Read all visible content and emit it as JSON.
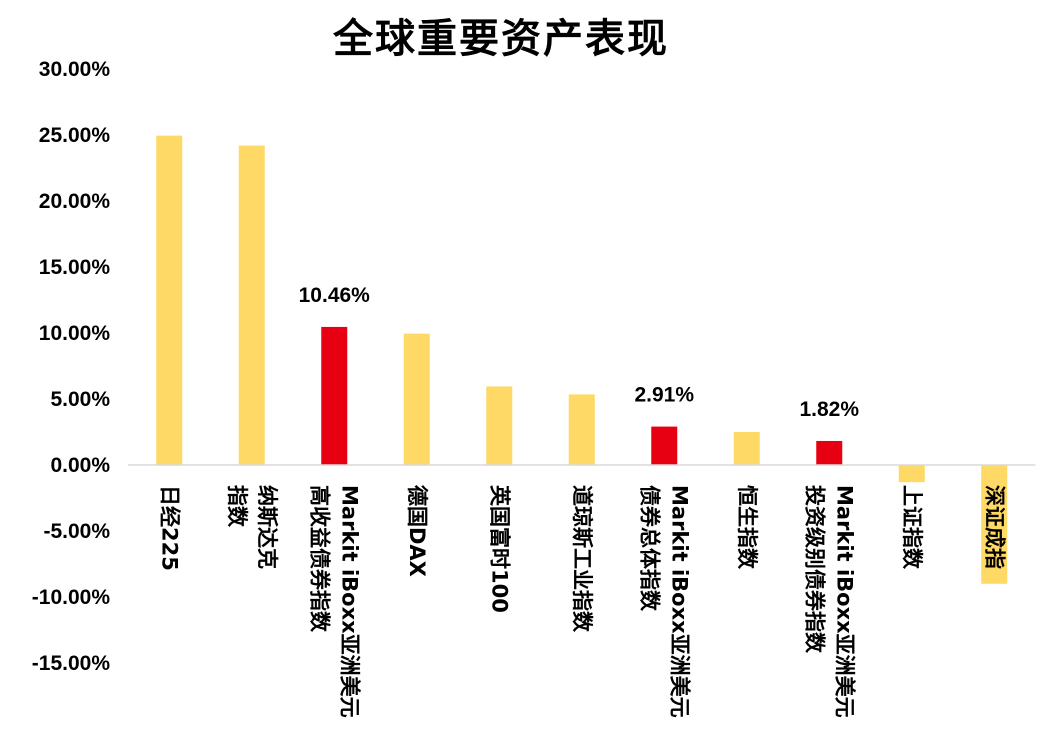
{
  "chart_data": {
    "type": "bar",
    "title": "全球重要资产表现",
    "xlabel": "",
    "ylabel": "",
    "ylim": [
      -15,
      30
    ],
    "yticks": [
      "30.00%",
      "25.00%",
      "20.00%",
      "15.00%",
      "10.00%",
      "5.00%",
      "0.00%",
      "-5.00%",
      "-10.00%",
      "-15.00%"
    ],
    "categories": [
      [
        "日经225"
      ],
      [
        "纳斯达克",
        "指数"
      ],
      [
        "Markit iBoxx亚洲美元",
        "高收益债券指数"
      ],
      [
        "德国DAX"
      ],
      [
        "英国富时100"
      ],
      [
        "道琼斯工业指数"
      ],
      [
        "Markit iBoxx亚洲美元",
        "债券总体指数"
      ],
      [
        "恒生指数"
      ],
      [
        "Markit iBoxx亚洲美元",
        "投资级别债券指数"
      ],
      [
        "上证指数"
      ],
      [
        "深证成指"
      ]
    ],
    "values": [
      24.95,
      24.2,
      10.46,
      9.95,
      5.95,
      5.35,
      2.91,
      2.5,
      1.82,
      -1.3,
      -9.0
    ],
    "highlight": [
      false,
      false,
      true,
      false,
      false,
      false,
      true,
      false,
      true,
      false,
      false
    ],
    "data_labels": [
      "",
      "",
      "10.46%",
      "",
      "",
      "",
      "2.91%",
      "",
      "1.82%",
      "",
      ""
    ],
    "colors": {
      "normal": "#FFD966",
      "highlight": "#E60012"
    },
    "grid": false,
    "legend": "none"
  }
}
